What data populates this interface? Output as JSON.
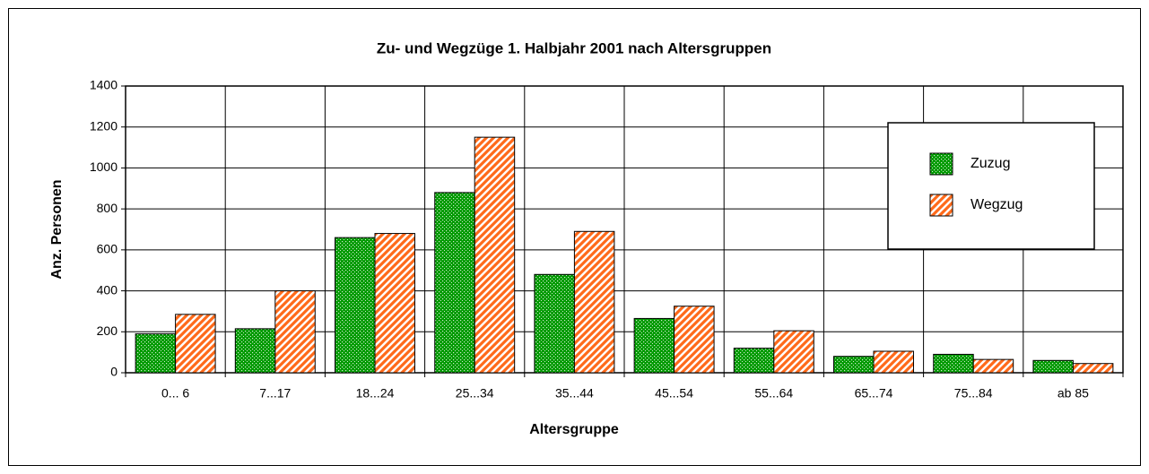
{
  "chart_data": {
    "type": "bar",
    "title": "Zu- und Wegzüge 1. Halbjahr 2001 nach Altersgruppen",
    "x_label": "Altersgruppe",
    "y_label": "Anz. Personen",
    "categories": [
      "0... 6",
      "7...17",
      "18...24",
      "25...34",
      "35...44",
      "45...54",
      "55...64",
      "65...74",
      "75...84",
      "ab 85"
    ],
    "series": [
      {
        "name": "Zuzug",
        "color": "#009a00",
        "values": [
          190,
          215,
          660,
          880,
          480,
          265,
          120,
          80,
          90,
          60
        ]
      },
      {
        "name": "Wegzug",
        "color": "#ff6a1a",
        "values": [
          285,
          400,
          680,
          1150,
          690,
          325,
          205,
          105,
          65,
          45
        ]
      }
    ],
    "ylim": [
      0,
      1400
    ],
    "yticks": [
      0,
      200,
      400,
      600,
      800,
      1000,
      1200,
      1400
    ],
    "grid": true,
    "legend": "upper right"
  }
}
